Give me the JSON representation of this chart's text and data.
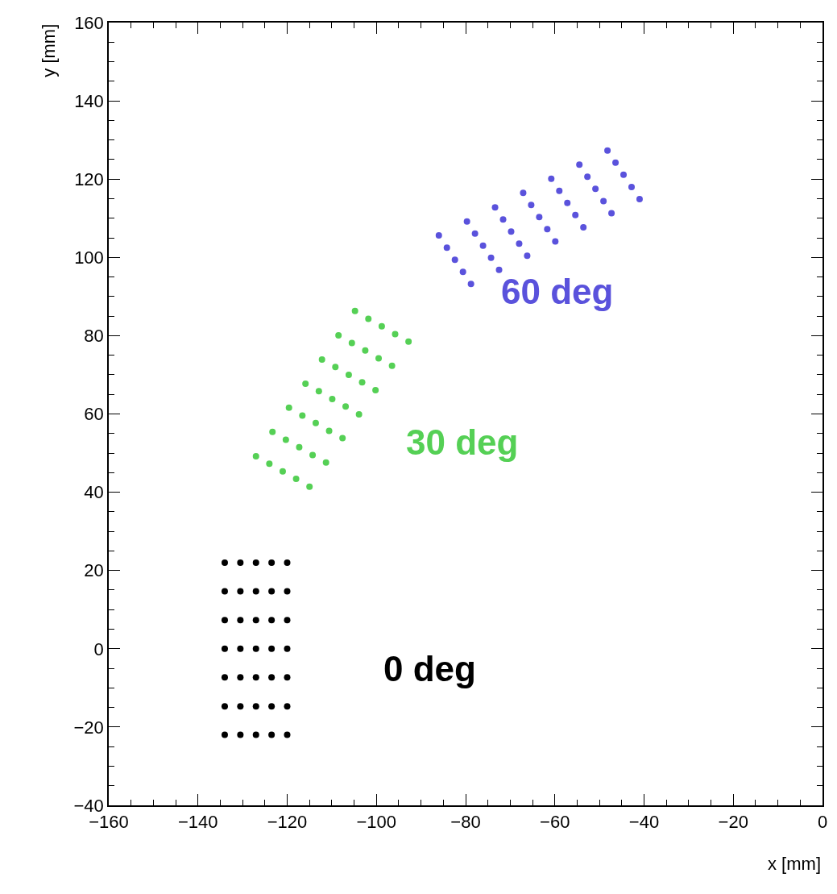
{
  "chart_data": {
    "type": "scatter",
    "xlabel": "x [mm]",
    "ylabel": "y [mm]",
    "xlim": [
      -160,
      0
    ],
    "xticks": [
      -160,
      -140,
      -120,
      -100,
      -80,
      -60,
      -40,
      -20,
      0
    ],
    "ylim": [
      -40,
      160
    ],
    "yticks": [
      -40,
      -20,
      0,
      20,
      40,
      60,
      80,
      100,
      120,
      140,
      160
    ],
    "grid": false,
    "legend": false,
    "marker": "circle",
    "series": [
      {
        "name": "0 deg",
        "color": "#000000",
        "x": [
          -134,
          -130.5,
          -127,
          -123.5,
          -120,
          -134,
          -130.5,
          -127,
          -123.5,
          -120,
          -134,
          -130.5,
          -127,
          -123.5,
          -120,
          -134,
          -130.5,
          -127,
          -123.5,
          -120,
          -134,
          -130.5,
          -127,
          -123.5,
          -120,
          -134,
          -130.5,
          -127,
          -123.5,
          -120,
          -134,
          -130.5,
          -127,
          -123.5,
          -120
        ],
        "values": [
          -22,
          -22,
          -22,
          -22,
          -22,
          -14.7,
          -14.7,
          -14.7,
          -14.7,
          -14.7,
          -7.3,
          -7.3,
          -7.3,
          -7.3,
          -7.3,
          0,
          0,
          0,
          0,
          0,
          7.3,
          7.3,
          7.3,
          7.3,
          7.3,
          14.7,
          14.7,
          14.7,
          14.7,
          14.7,
          22,
          22,
          22,
          22,
          22
        ]
      },
      {
        "name": "30 deg",
        "color": "#55d055",
        "x": [
          -115.0,
          -111.3,
          -107.6,
          -103.9,
          -100.2,
          -96.5,
          -92.8,
          -118.0,
          -114.3,
          -110.6,
          -106.9,
          -103.2,
          -99.5,
          -95.8,
          -121.0,
          -117.3,
          -113.6,
          -109.9,
          -106.2,
          -102.5,
          -98.8,
          -124.0,
          -120.3,
          -116.6,
          -112.9,
          -109.2,
          -105.5,
          -101.8,
          -127.0,
          -123.3,
          -119.6,
          -115.9,
          -112.2,
          -108.5,
          -104.8
        ],
        "values": [
          41.4,
          47.6,
          53.8,
          59.9,
          66.1,
          72.3,
          78.5,
          43.4,
          49.5,
          55.7,
          61.9,
          68.1,
          74.2,
          80.4,
          45.3,
          51.5,
          57.7,
          63.8,
          70.0,
          76.2,
          82.4,
          47.3,
          53.4,
          59.6,
          65.8,
          72.0,
          78.1,
          84.3,
          49.2,
          55.4,
          61.6,
          67.7,
          73.9,
          80.1,
          86.3
        ]
      },
      {
        "name": "60 deg",
        "color": "#5a52dc",
        "x": [
          -78.8,
          -72.5,
          -66.2,
          -59.9,
          -53.6,
          -47.3,
          -41.0,
          -80.6,
          -74.3,
          -68.0,
          -61.7,
          -55.4,
          -49.1,
          -42.8,
          -82.4,
          -76.1,
          -69.8,
          -63.5,
          -57.2,
          -50.9,
          -44.6,
          -84.2,
          -77.9,
          -71.6,
          -65.3,
          -59.0,
          -52.7,
          -46.4,
          -86.0,
          -79.7,
          -73.4,
          -67.1,
          -60.8,
          -54.5,
          -48.2
        ],
        "values": [
          93.2,
          96.8,
          100.4,
          104.1,
          107.7,
          111.3,
          114.9,
          96.3,
          99.9,
          103.5,
          107.2,
          110.8,
          114.4,
          118.0,
          99.4,
          103.0,
          106.6,
          110.3,
          113.9,
          117.5,
          121.1,
          102.5,
          106.1,
          109.7,
          113.4,
          117.0,
          120.6,
          124.2,
          105.6,
          109.2,
          112.8,
          116.5,
          120.1,
          123.7,
          127.3
        ]
      }
    ]
  }
}
